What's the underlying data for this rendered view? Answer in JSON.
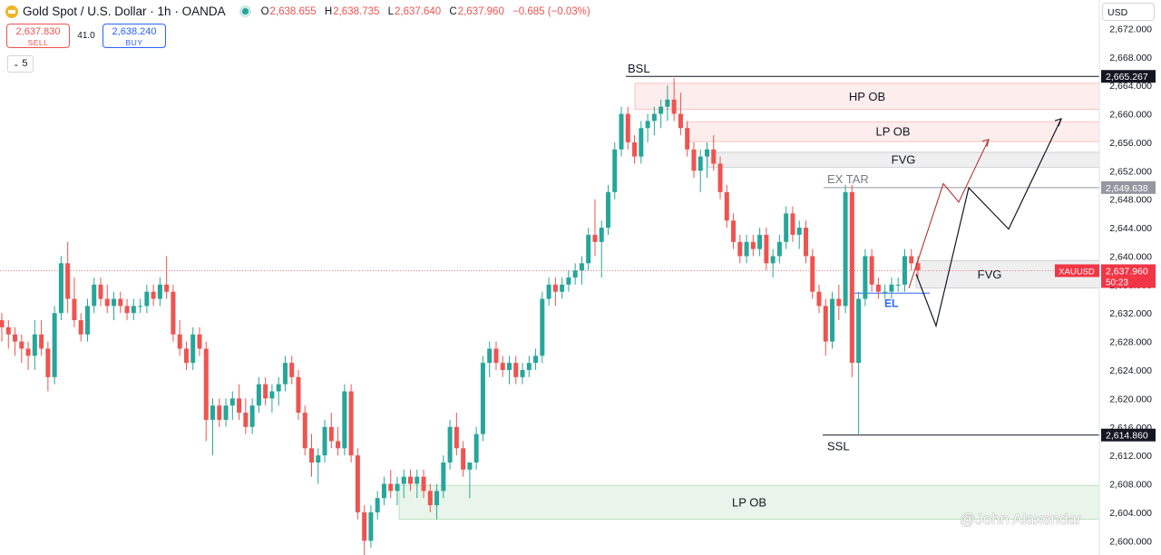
{
  "header": {
    "symbol": "Gold Spot / U.S. Dollar · 1h · OANDA",
    "open_label": "O",
    "open": "2,638.655",
    "high_label": "H",
    "high": "2,638.735",
    "low_label": "L",
    "low": "2,637.640",
    "close_label": "C",
    "close": "2,637.960",
    "change": "−0.685 (−0.03%)"
  },
  "trade": {
    "sell_price": "2,637.830",
    "sell_label": "SELL",
    "spread": "41.0",
    "buy_price": "2,638.240",
    "buy_label": "BUY"
  },
  "indicator_collapse": "5",
  "currency": "USD",
  "watermark": "@John Alaxendar",
  "colors": {
    "up": "#26a69a",
    "down": "#ef5350",
    "accent": "#2962ff"
  },
  "chart_data": {
    "type": "candlestick",
    "instrument": "XAUUSD",
    "timeframe": "1h",
    "ylim": [
      2598,
      2676
    ],
    "yticks": [
      "2,600.000",
      "2,604.000",
      "2,608.000",
      "2,612.000",
      "2,616.000",
      "2,620.000",
      "2,624.000",
      "2,628.000",
      "2,632.000",
      "2,636.000",
      "2,640.000",
      "2,644.000",
      "2,648.000",
      "2,652.000",
      "2,656.000",
      "2,660.000",
      "2,664.000",
      "2,668.000",
      "2,672.000"
    ],
    "price_tags": [
      {
        "value": 2665.267,
        "label": "2,665.267",
        "style": "dark"
      },
      {
        "value": 2649.638,
        "label": "2,649.638",
        "style": "gray"
      },
      {
        "value": 2637.96,
        "label": "2,637.960",
        "sub": "50:23",
        "name": "XAUUSD",
        "style": "red"
      },
      {
        "value": 2614.86,
        "label": "2,614.860",
        "style": "dark"
      }
    ],
    "candles": [
      [
        2631,
        2632,
        2628,
        2630
      ],
      [
        2630,
        2631,
        2627,
        2629
      ],
      [
        2629,
        2630,
        2626,
        2628
      ],
      [
        2628,
        2629,
        2625,
        2627
      ],
      [
        2627,
        2628,
        2624,
        2626
      ],
      [
        2626,
        2631,
        2624,
        2629
      ],
      [
        2629,
        2631,
        2626,
        2627
      ],
      [
        2627,
        2628,
        2621,
        2623
      ],
      [
        2623,
        2633,
        2622,
        2632
      ],
      [
        2632,
        2640,
        2631,
        2639
      ],
      [
        2639,
        2642,
        2632,
        2634
      ],
      [
        2634,
        2637,
        2630,
        2631
      ],
      [
        2631,
        2632,
        2628,
        2629
      ],
      [
        2629,
        2634,
        2628,
        2633
      ],
      [
        2633,
        2637,
        2632,
        2636
      ],
      [
        2636,
        2637,
        2633,
        2634
      ],
      [
        2634,
        2636,
        2632,
        2633
      ],
      [
        2633,
        2635,
        2631,
        2634
      ],
      [
        2634,
        2635,
        2632,
        2633
      ],
      [
        2633,
        2634,
        2631,
        2632
      ],
      [
        2632,
        2634,
        2631,
        2633
      ],
      [
        2633,
        2634,
        2632,
        2633
      ],
      [
        2633,
        2636,
        2632,
        2635
      ],
      [
        2635,
        2636,
        2633,
        2634
      ],
      [
        2634,
        2637,
        2633,
        2636
      ],
      [
        2636,
        2640,
        2634,
        2635
      ],
      [
        2635,
        2636,
        2628,
        2629
      ],
      [
        2629,
        2631,
        2626,
        2627
      ],
      [
        2627,
        2628,
        2624,
        2625
      ],
      [
        2625,
        2630,
        2624,
        2629
      ],
      [
        2629,
        2630,
        2626,
        2627
      ],
      [
        2627,
        2628,
        2614,
        2617
      ],
      [
        2617,
        2620,
        2612,
        2619
      ],
      [
        2619,
        2620,
        2616,
        2617
      ],
      [
        2617,
        2620,
        2616,
        2619
      ],
      [
        2619,
        2621,
        2617,
        2620
      ],
      [
        2620,
        2622,
        2617,
        2618
      ],
      [
        2618,
        2620,
        2615,
        2616
      ],
      [
        2616,
        2620,
        2615,
        2619
      ],
      [
        2619,
        2623,
        2618,
        2622
      ],
      [
        2622,
        2623,
        2619,
        2620
      ],
      [
        2620,
        2622,
        2618,
        2621
      ],
      [
        2621,
        2623,
        2619,
        2622
      ],
      [
        2622,
        2626,
        2621,
        2625
      ],
      [
        2625,
        2626,
        2622,
        2623
      ],
      [
        2623,
        2624,
        2617,
        2618
      ],
      [
        2618,
        2619,
        2612,
        2613
      ],
      [
        2613,
        2615,
        2609,
        2611
      ],
      [
        2611,
        2613,
        2608,
        2612
      ],
      [
        2612,
        2617,
        2611,
        2616
      ],
      [
        2616,
        2618,
        2613,
        2614
      ],
      [
        2614,
        2616,
        2612,
        2613
      ],
      [
        2613,
        2622,
        2612,
        2621
      ],
      [
        2621,
        2622,
        2611,
        2612
      ],
      [
        2612,
        2613,
        2603,
        2604
      ],
      [
        2604,
        2605,
        2598,
        2600
      ],
      [
        2600,
        2605,
        2599,
        2604
      ],
      [
        2604,
        2607,
        2603,
        2606
      ],
      [
        2606,
        2609,
        2605,
        2608
      ],
      [
        2608,
        2610,
        2606,
        2607
      ],
      [
        2607,
        2609,
        2605,
        2608
      ],
      [
        2608,
        2610,
        2606,
        2609
      ],
      [
        2609,
        2610,
        2607,
        2608
      ],
      [
        2608,
        2610,
        2606,
        2609
      ],
      [
        2609,
        2610,
        2606,
        2607
      ],
      [
        2607,
        2608,
        2604,
        2605
      ],
      [
        2605,
        2608,
        2603,
        2607
      ],
      [
        2607,
        2612,
        2606,
        2611
      ],
      [
        2611,
        2617,
        2610,
        2616
      ],
      [
        2616,
        2618,
        2612,
        2613
      ],
      [
        2613,
        2614,
        2609,
        2610
      ],
      [
        2610,
        2611,
        2606,
        2611
      ],
      [
        2611,
        2616,
        2610,
        2615
      ],
      [
        2615,
        2626,
        2614,
        2625
      ],
      [
        2625,
        2628,
        2623,
        2627
      ],
      [
        2627,
        2628,
        2624,
        2625
      ],
      [
        2625,
        2626,
        2623,
        2624
      ],
      [
        2624,
        2626,
        2622,
        2625
      ],
      [
        2625,
        2626,
        2622,
        2623
      ],
      [
        2623,
        2625,
        2622,
        2624
      ],
      [
        2624,
        2626,
        2623,
        2625
      ],
      [
        2625,
        2627,
        2624,
        2626
      ],
      [
        2626,
        2635,
        2625,
        2634
      ],
      [
        2634,
        2637,
        2633,
        2636
      ],
      [
        2636,
        2637,
        2633,
        2635
      ],
      [
        2635,
        2637,
        2634,
        2636
      ],
      [
        2636,
        2638,
        2635,
        2637
      ],
      [
        2637,
        2639,
        2636,
        2638
      ],
      [
        2638,
        2640,
        2636,
        2639
      ],
      [
        2639,
        2644,
        2638,
        2643
      ],
      [
        2643,
        2648,
        2640,
        2642
      ],
      [
        2642,
        2645,
        2637,
        2644
      ],
      [
        2644,
        2650,
        2643,
        2649
      ],
      [
        2649,
        2656,
        2648,
        2655
      ],
      [
        2655,
        2661,
        2654,
        2660
      ],
      [
        2660,
        2661,
        2655,
        2656
      ],
      [
        2656,
        2657,
        2653,
        2654
      ],
      [
        2654,
        2659,
        2653,
        2658
      ],
      [
        2658,
        2660,
        2656,
        2659
      ],
      [
        2659,
        2661,
        2657,
        2660
      ],
      [
        2660,
        2662,
        2658,
        2661
      ],
      [
        2661,
        2664,
        2659,
        2662
      ],
      [
        2662,
        2665,
        2659,
        2660
      ],
      [
        2660,
        2663,
        2657,
        2658
      ],
      [
        2658,
        2659,
        2654,
        2655
      ],
      [
        2655,
        2656,
        2651,
        2652
      ],
      [
        2652,
        2655,
        2649,
        2654
      ],
      [
        2654,
        2656,
        2651,
        2655
      ],
      [
        2655,
        2657,
        2652,
        2653
      ],
      [
        2653,
        2654,
        2648,
        2649
      ],
      [
        2649,
        2650,
        2644,
        2645
      ],
      [
        2645,
        2646,
        2641,
        2642
      ],
      [
        2642,
        2643,
        2639,
        2640
      ],
      [
        2640,
        2643,
        2639,
        2642
      ],
      [
        2642,
        2643,
        2640,
        2641
      ],
      [
        2641,
        2644,
        2640,
        2643
      ],
      [
        2643,
        2644,
        2638,
        2639
      ],
      [
        2639,
        2641,
        2637,
        2640
      ],
      [
        2640,
        2643,
        2639,
        2642
      ],
      [
        2642,
        2647,
        2641,
        2646
      ],
      [
        2646,
        2647,
        2642,
        2643
      ],
      [
        2643,
        2645,
        2641,
        2644
      ],
      [
        2644,
        2645,
        2639,
        2640
      ],
      [
        2640,
        2641,
        2634,
        2635
      ],
      [
        2635,
        2636,
        2632,
        2633
      ],
      [
        2633,
        2634,
        2626,
        2628
      ],
      [
        2628,
        2635,
        2627,
        2634
      ],
      [
        2634,
        2636,
        2631,
        2633
      ],
      [
        2633,
        2650,
        2632,
        2649
      ],
      [
        2649,
        2650,
        2623,
        2625
      ],
      [
        2625,
        2635,
        2615,
        2634
      ],
      [
        2634,
        2641,
        2633,
        2640
      ],
      [
        2640,
        2641,
        2635,
        2636
      ],
      [
        2636,
        2637,
        2634,
        2635
      ],
      [
        2635,
        2636,
        2634,
        2635
      ],
      [
        2635,
        2637,
        2634,
        2636
      ],
      [
        2636,
        2637,
        2635,
        2636
      ],
      [
        2636,
        2641,
        2635,
        2640
      ],
      [
        2640,
        2641,
        2638,
        2639
      ],
      [
        2639,
        2640,
        2637,
        2638
      ]
    ],
    "zones": [
      {
        "label": "HP OB",
        "top": 2664.3,
        "bottom": 2660.6,
        "kind": "bearish"
      },
      {
        "label": "LP OB",
        "top": 2658.9,
        "bottom": 2656.1,
        "kind": "bearish"
      },
      {
        "label": "FVG",
        "top": 2654.6,
        "bottom": 2652.5,
        "kind": "neutral"
      },
      {
        "label": "FVG",
        "top": 2639.4,
        "bottom": 2635.5,
        "kind": "neutral"
      },
      {
        "label": "LP OB",
        "top": 2607.8,
        "bottom": 2603.0,
        "kind": "bullish"
      }
    ],
    "levels": [
      {
        "label": "BSL",
        "value": 2665.267
      },
      {
        "label": "EX TAR",
        "value": 2649.638
      },
      {
        "label": "SSL",
        "value": 2614.86
      },
      {
        "label": "EL",
        "value": 2634.8
      }
    ],
    "projection_black": [
      2637.5,
      2630.2,
      2649.6,
      2643.8,
      2659.3
    ],
    "projection_red": [
      2635.5,
      2650.2,
      2647.6,
      2656.4
    ]
  }
}
